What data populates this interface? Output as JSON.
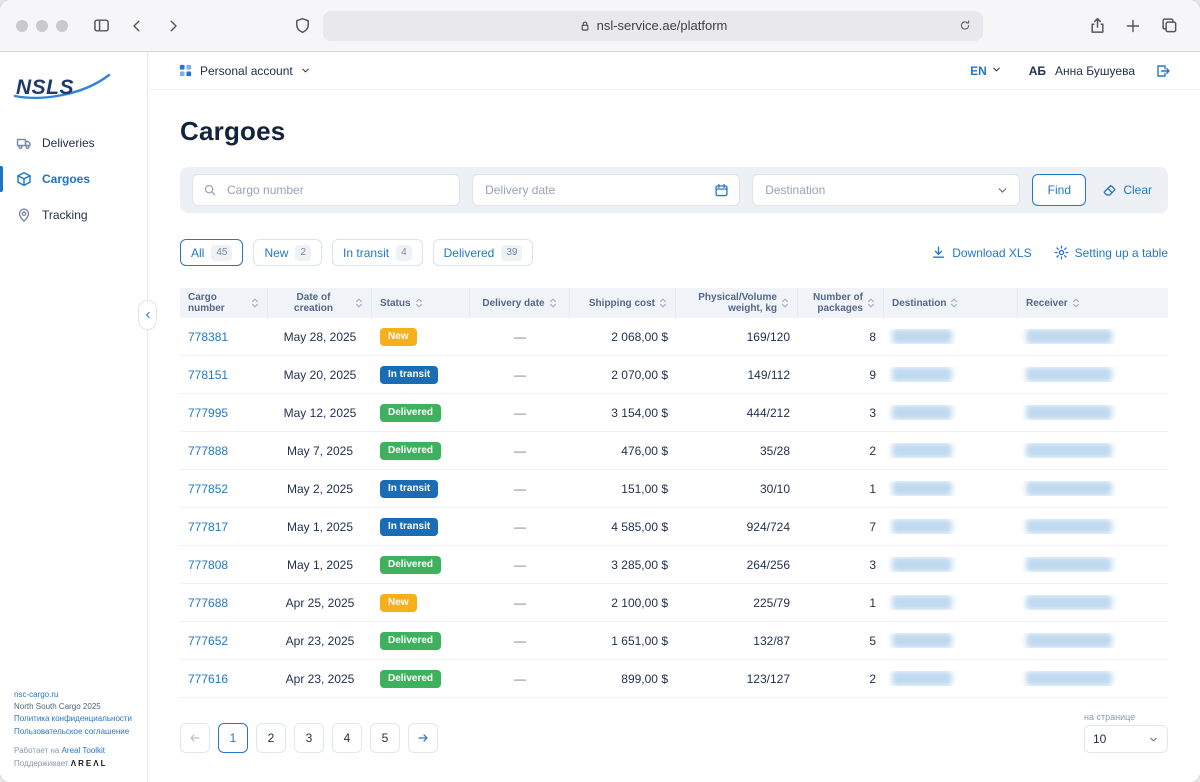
{
  "browser": {
    "url": "nsl-service.ae/platform"
  },
  "header": {
    "account_menu": "Personal account",
    "language": "EN",
    "user_initials": "АБ",
    "user_name": "Анна Бушуева"
  },
  "sidebar": {
    "logo_text": "NSLS",
    "items": [
      {
        "label": "Deliveries",
        "icon": "truck",
        "active": false
      },
      {
        "label": "Cargoes",
        "icon": "box",
        "active": true
      },
      {
        "label": "Tracking",
        "icon": "pin",
        "active": false
      }
    ],
    "footer": {
      "site_link": "nsc-cargo.ru",
      "company": "North South Cargo 2025",
      "privacy_link": "Политика конфиденциальности",
      "terms_link": "Пользовательское соглашение",
      "powered_prefix": "Работает на",
      "powered_link": "Areal Toolkit",
      "supported_prefix": "Поддерживает",
      "supported_logo": "ΛREΛL"
    }
  },
  "page": {
    "title": "Cargoes"
  },
  "filters": {
    "cargo_number_placeholder": "Cargo number",
    "delivery_date_placeholder": "Delivery date",
    "destination_placeholder": "Destination",
    "find_label": "Find",
    "clear_label": "Clear"
  },
  "tabs": [
    {
      "label": "All",
      "count": "45",
      "active": true
    },
    {
      "label": "New",
      "count": "2",
      "active": false
    },
    {
      "label": "In transit",
      "count": "4",
      "active": false
    },
    {
      "label": "Delivered",
      "count": "39",
      "active": false
    }
  ],
  "table_actions": {
    "download_label": "Download XLS",
    "settings_label": "Setting up a table"
  },
  "table": {
    "columns": [
      {
        "label": "Cargo number",
        "align": "left"
      },
      {
        "label": "Date of creation",
        "align": "center"
      },
      {
        "label": "Status",
        "align": "left"
      },
      {
        "label": "Delivery date",
        "align": "center"
      },
      {
        "label": "Shipping cost",
        "align": "right"
      },
      {
        "label": "Physical/Volume weight, kg",
        "align": "right"
      },
      {
        "label": "Number of packages",
        "align": "right"
      },
      {
        "label": "Destination",
        "align": "left"
      },
      {
        "label": "Receiver",
        "align": "left"
      }
    ],
    "redacted_columns": [
      "Destination",
      "Receiver"
    ],
    "rows": [
      {
        "cargo_number": "778381",
        "date_of_creation": "May 28, 2025",
        "status": "New",
        "delivery_date": "—",
        "shipping_cost": "2 068,00 $",
        "weight": "169/120",
        "packages": "8"
      },
      {
        "cargo_number": "778151",
        "date_of_creation": "May 20, 2025",
        "status": "In transit",
        "delivery_date": "—",
        "shipping_cost": "2 070,00 $",
        "weight": "149/112",
        "packages": "9"
      },
      {
        "cargo_number": "777995",
        "date_of_creation": "May 12, 2025",
        "status": "Delivered",
        "delivery_date": "—",
        "shipping_cost": "3 154,00 $",
        "weight": "444/212",
        "packages": "3"
      },
      {
        "cargo_number": "777888",
        "date_of_creation": "May 7, 2025",
        "status": "Delivered",
        "delivery_date": "—",
        "shipping_cost": "476,00 $",
        "weight": "35/28",
        "packages": "2"
      },
      {
        "cargo_number": "777852",
        "date_of_creation": "May 2, 2025",
        "status": "In transit",
        "delivery_date": "—",
        "shipping_cost": "151,00 $",
        "weight": "30/10",
        "packages": "1"
      },
      {
        "cargo_number": "777817",
        "date_of_creation": "May 1, 2025",
        "status": "In transit",
        "delivery_date": "—",
        "shipping_cost": "4 585,00 $",
        "weight": "924/724",
        "packages": "7"
      },
      {
        "cargo_number": "777808",
        "date_of_creation": "May 1, 2025",
        "status": "Delivered",
        "delivery_date": "—",
        "shipping_cost": "3 285,00 $",
        "weight": "264/256",
        "packages": "3"
      },
      {
        "cargo_number": "777688",
        "date_of_creation": "Apr 25, 2025",
        "status": "New",
        "delivery_date": "—",
        "shipping_cost": "2 100,00 $",
        "weight": "225/79",
        "packages": "1"
      },
      {
        "cargo_number": "777652",
        "date_of_creation": "Apr 23, 2025",
        "status": "Delivered",
        "delivery_date": "—",
        "shipping_cost": "1 651,00 $",
        "weight": "132/87",
        "packages": "5"
      },
      {
        "cargo_number": "777616",
        "date_of_creation": "Apr 23, 2025",
        "status": "Delivered",
        "delivery_date": "—",
        "shipping_cost": "899,00 $",
        "weight": "123/127",
        "packages": "2"
      }
    ]
  },
  "status_colors": {
    "New": "#F5B01A",
    "In transit": "#1A6CB5",
    "Delivered": "#3EB15E"
  },
  "pagination": {
    "pages": [
      "1",
      "2",
      "3",
      "4",
      "5"
    ],
    "active_page": "1",
    "per_page_label": "на странице",
    "per_page_value": "10"
  },
  "colors": {
    "accent": "#2477C8",
    "title": "#14233C"
  }
}
